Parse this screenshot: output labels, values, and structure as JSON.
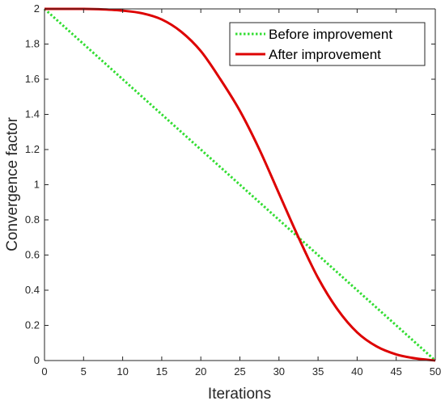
{
  "chart_data": {
    "type": "line",
    "title": "",
    "xlabel": "Iterations",
    "ylabel": "Convergence factor",
    "xlim": [
      0,
      50
    ],
    "ylim": [
      0,
      2
    ],
    "xticks": [
      "0",
      "5",
      "10",
      "15",
      "20",
      "25",
      "30",
      "35",
      "40",
      "45",
      "50"
    ],
    "yticks": [
      "0",
      "0.2",
      "0.4",
      "0.6",
      "0.8",
      "1",
      "1.2",
      "1.4",
      "1.6",
      "1.8",
      "2"
    ],
    "grid": false,
    "legend_position": "top-right",
    "series": [
      {
        "name": "Before improvement",
        "color": "#33dd33",
        "style": "dotted",
        "x": [
          0,
          50
        ],
        "y": [
          2,
          0
        ]
      },
      {
        "name": "After improvement",
        "color": "#dd0000",
        "style": "solid",
        "x": [
          0,
          2.5,
          5,
          7.5,
          10,
          12.5,
          15,
          17.5,
          20,
          22.5,
          25,
          27.5,
          30,
          32.5,
          35,
          37.5,
          40,
          42.5,
          45,
          47.5,
          50
        ],
        "y": [
          2,
          2,
          2,
          1.997,
          1.99,
          1.975,
          1.94,
          1.87,
          1.76,
          1.6,
          1.42,
          1.2,
          0.95,
          0.7,
          0.47,
          0.29,
          0.16,
          0.08,
          0.035,
          0.012,
          0
        ]
      }
    ]
  }
}
